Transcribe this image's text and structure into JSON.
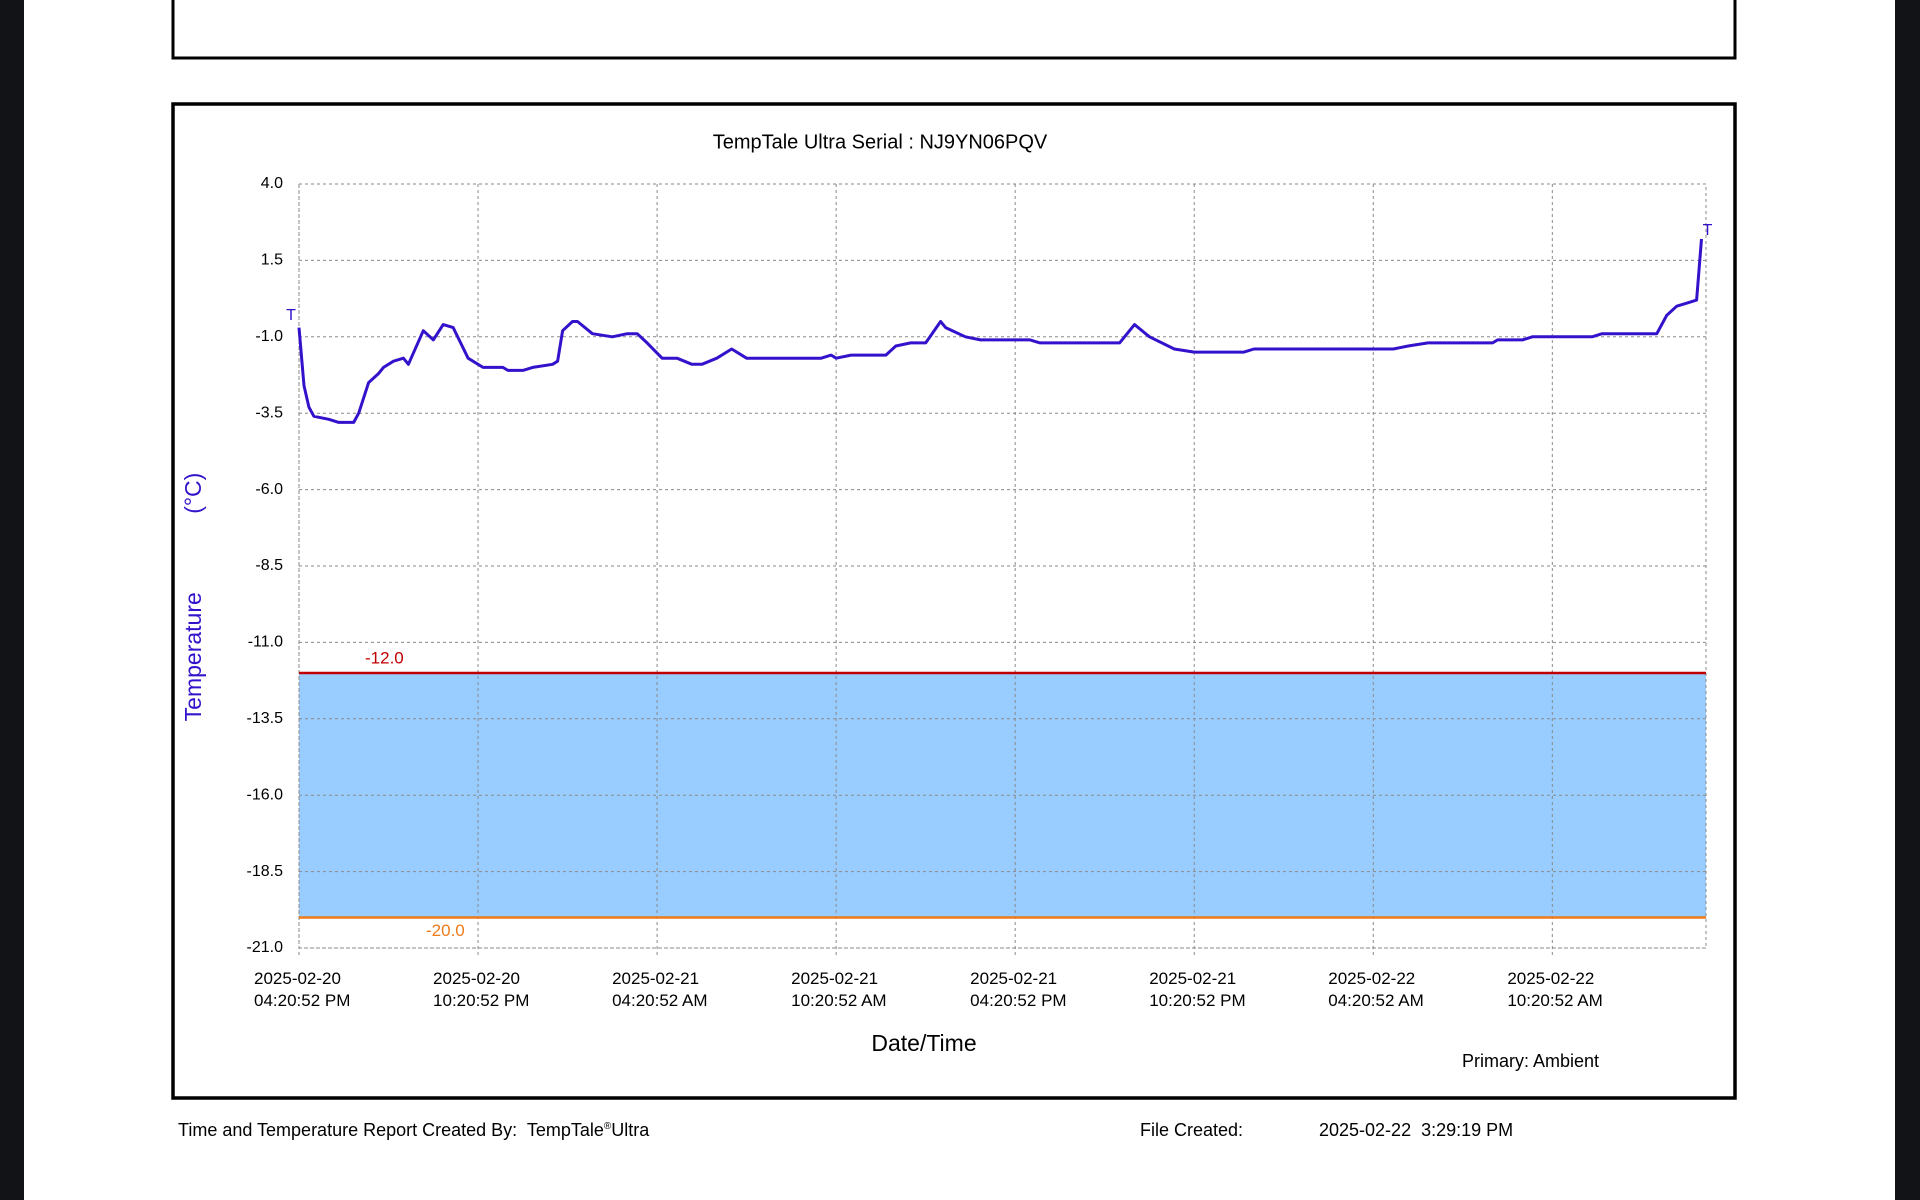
{
  "chart_data": {
    "type": "line",
    "title": "TempTale Ultra  Serial : NJ9YN06PQV",
    "xlabel": "Date/Time",
    "ylabel": "Temperature (°C)",
    "note": "Primary: Ambient",
    "start_marker": "T",
    "end_marker": "T",
    "grid": true,
    "band_color": "#99ccff",
    "thresholds": [
      {
        "value": -12,
        "label": "-12.0",
        "color": "#c00000"
      },
      {
        "value": -20,
        "label": "-20.0",
        "color": "#ee7b1a"
      }
    ],
    "xlim": [
      "2025-02-20T16:20:52",
      "2025-02-22T15:29:52"
    ],
    "xticks": [
      {
        "value": "2025-02-20T16:20:52",
        "label": "2025-02-20\n04:20:52 PM"
      },
      {
        "value": "2025-02-20T22:20:52",
        "label": "2025-02-20\n10:20:52 PM"
      },
      {
        "value": "2025-02-21T04:20:52",
        "label": "2025-02-21\n04:20:52 AM"
      },
      {
        "value": "2025-02-21T10:20:52",
        "label": "2025-02-21\n10:20:52 AM"
      },
      {
        "value": "2025-02-21T16:20:52",
        "label": "2025-02-21\n04:20:52 PM"
      },
      {
        "value": "2025-02-21T22:20:52",
        "label": "2025-02-21\n10:20:52 PM"
      },
      {
        "value": "2025-02-22T04:20:52",
        "label": "2025-02-22\n04:20:52 AM"
      },
      {
        "value": "2025-02-22T10:20:52",
        "label": "2025-02-22\n10:20:52 AM"
      }
    ],
    "ylim": [
      -21,
      4
    ],
    "yticks": [
      {
        "value": 4,
        "label": "4.0"
      },
      {
        "value": 1.5,
        "label": "1.5"
      },
      {
        "value": -1,
        "label": "-1.0"
      },
      {
        "value": -3.5,
        "label": "-3.5"
      },
      {
        "value": -6,
        "label": "-6.0"
      },
      {
        "value": -8.5,
        "label": "-8.5"
      },
      {
        "value": -11,
        "label": "-11.0"
      },
      {
        "value": -13.5,
        "label": "-13.5"
      },
      {
        "value": -16,
        "label": "-16.0"
      },
      {
        "value": -18.5,
        "label": "-18.5"
      },
      {
        "value": -21,
        "label": "-21.0"
      }
    ],
    "series": [
      {
        "name": "Temperature",
        "color": "#3412cc",
        "x": [
          "2025-02-20T16:20:52",
          "2025-02-20T16:30:52",
          "2025-02-20T16:40:52",
          "2025-02-20T16:50:52",
          "2025-02-20T17:20:52",
          "2025-02-20T17:40:52",
          "2025-02-20T18:10:52",
          "2025-02-20T18:20:52",
          "2025-02-20T18:40:52",
          "2025-02-20T19:00:52",
          "2025-02-20T19:10:52",
          "2025-02-20T19:30:52",
          "2025-02-20T19:50:52",
          "2025-02-20T20:00:52",
          "2025-02-20T20:30:52",
          "2025-02-20T20:50:52",
          "2025-02-20T21:10:52",
          "2025-02-20T21:30:52",
          "2025-02-20T22:00:52",
          "2025-02-20T22:30:52",
          "2025-02-20T23:10:52",
          "2025-02-20T23:20:52",
          "2025-02-20T23:50:52",
          "2025-02-21T00:10:52",
          "2025-02-21T00:50:52",
          "2025-02-21T01:00:52",
          "2025-02-21T01:10:52",
          "2025-02-21T01:30:52",
          "2025-02-21T01:40:52",
          "2025-02-21T02:10:52",
          "2025-02-21T02:50:52",
          "2025-02-21T03:20:52",
          "2025-02-21T03:40:52",
          "2025-02-21T04:00:52",
          "2025-02-21T04:30:52",
          "2025-02-21T05:00:52",
          "2025-02-21T05:30:52",
          "2025-02-21T05:50:52",
          "2025-02-21T06:20:52",
          "2025-02-21T06:50:52",
          "2025-02-21T07:20:52",
          "2025-02-21T09:50:52",
          "2025-02-21T10:10:52",
          "2025-02-21T10:20:52",
          "2025-02-21T10:50:52",
          "2025-02-21T12:00:52",
          "2025-02-21T12:20:52",
          "2025-02-21T12:50:52",
          "2025-02-21T13:20:52",
          "2025-02-21T13:50:52",
          "2025-02-21T14:00:52",
          "2025-02-21T14:40:52",
          "2025-02-21T15:10:52",
          "2025-02-21T16:50:52",
          "2025-02-21T17:10:52",
          "2025-02-21T19:50:52",
          "2025-02-21T20:20:52",
          "2025-02-21T20:50:52",
          "2025-02-21T21:40:52",
          "2025-02-21T22:20:52",
          "2025-02-22T00:00:52",
          "2025-02-22T00:20:52",
          "2025-02-22T05:00:52",
          "2025-02-22T05:30:52",
          "2025-02-22T06:10:52",
          "2025-02-22T08:20:52",
          "2025-02-22T08:30:52",
          "2025-02-22T09:20:52",
          "2025-02-22T09:40:52",
          "2025-02-22T11:40:52",
          "2025-02-22T12:00:52",
          "2025-02-22T13:50:52",
          "2025-02-22T14:10:52",
          "2025-02-22T14:30:52",
          "2025-02-22T14:50:52",
          "2025-02-22T15:10:52",
          "2025-02-22T15:20:52"
        ],
        "values": [
          -0.7,
          -2.6,
          -3.3,
          -3.6,
          -3.7,
          -3.8,
          -3.8,
          -3.5,
          -2.5,
          -2.2,
          -2.0,
          -1.8,
          -1.7,
          -1.9,
          -0.8,
          -1.1,
          -0.6,
          -0.7,
          -1.7,
          -2.0,
          -2.0,
          -2.1,
          -2.1,
          -2.0,
          -1.9,
          -1.8,
          -0.8,
          -0.5,
          -0.5,
          -0.9,
          -1.0,
          -0.9,
          -0.9,
          -1.2,
          -1.7,
          -1.7,
          -1.9,
          -1.9,
          -1.7,
          -1.4,
          -1.7,
          -1.7,
          -1.6,
          -1.7,
          -1.6,
          -1.6,
          -1.3,
          -1.2,
          -1.2,
          -0.5,
          -0.7,
          -1.0,
          -1.1,
          -1.1,
          -1.2,
          -1.2,
          -0.6,
          -1.0,
          -1.4,
          -1.5,
          -1.5,
          -1.4,
          -1.4,
          -1.3,
          -1.2,
          -1.2,
          -1.1,
          -1.1,
          -1.0,
          -1.0,
          -0.9,
          -0.9,
          -0.3,
          0.0,
          0.1,
          0.2,
          2.2
        ]
      }
    ]
  },
  "footer": {
    "created_by": "Time and Temperature Report Created By:",
    "product": "TempTale",
    "registered": "®",
    "product_suffix": "Ultra",
    "file_created_label": "File Created:",
    "file_created": "2025-02-22  3:29:19 PM"
  }
}
